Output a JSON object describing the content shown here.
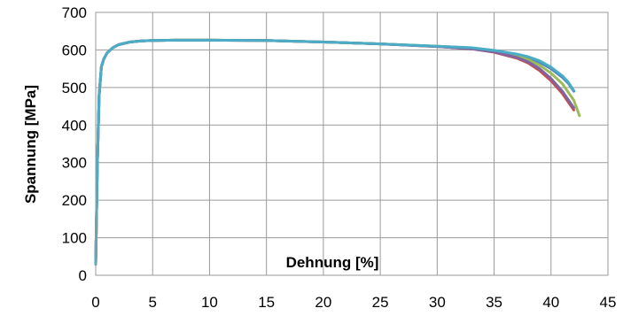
{
  "chart_data": {
    "type": "line",
    "title": "",
    "xlabel": "Dehnung [%]",
    "ylabel": "Spannung [MPa]",
    "xlim": [
      0,
      45
    ],
    "ylim": [
      0,
      700
    ],
    "x_ticks": [
      0,
      5,
      10,
      15,
      20,
      25,
      30,
      35,
      40,
      45
    ],
    "y_ticks": [
      0,
      100,
      200,
      300,
      400,
      500,
      600,
      700
    ],
    "x_tick_labels": [
      "0",
      "5",
      "10",
      "15",
      "20",
      "25",
      "30",
      "35",
      "40",
      "45"
    ],
    "y_tick_labels": [
      "0",
      "100",
      "200",
      "300",
      "400",
      "500",
      "600",
      "700"
    ],
    "grid": true,
    "legend": "none",
    "series": [
      {
        "color": "#4f81bd",
        "x": [
          0,
          0.15,
          0.3,
          0.5,
          0.7,
          1.0,
          1.5,
          2,
          3,
          4,
          5,
          7,
          10,
          15,
          20,
          25,
          30,
          33,
          35,
          37,
          38,
          39,
          40,
          41,
          41.5,
          42.0
        ],
        "y": [
          30,
          300,
          480,
          555,
          575,
          592,
          606,
          614,
          621,
          624,
          625,
          626,
          626,
          625,
          621,
          616,
          610,
          605,
          598,
          588,
          580,
          567,
          550,
          527,
          512,
          490
        ]
      },
      {
        "color": "#c0504d",
        "x": [
          0,
          0.15,
          0.3,
          0.5,
          0.7,
          1.0,
          1.5,
          2,
          3,
          4,
          5,
          7,
          10,
          15,
          20,
          25,
          30,
          33,
          35,
          37,
          38,
          39,
          40,
          41,
          41.5,
          42.0
        ],
        "y": [
          30,
          300,
          480,
          555,
          575,
          592,
          606,
          614,
          621,
          624,
          625,
          626,
          626,
          625,
          621,
          616,
          609,
          603,
          594,
          578,
          565,
          545,
          518,
          484,
          462,
          440
        ]
      },
      {
        "color": "#9bbb59",
        "x": [
          0,
          0.15,
          0.3,
          0.5,
          0.7,
          1.0,
          1.5,
          2,
          3,
          4,
          5,
          7,
          10,
          15,
          20,
          25,
          30,
          33,
          35,
          37,
          38,
          39,
          40,
          41,
          42,
          42.5
        ],
        "y": [
          30,
          300,
          480,
          555,
          575,
          592,
          606,
          614,
          621,
          624,
          625,
          626,
          626,
          625,
          621,
          616,
          610,
          605,
          597,
          584,
          574,
          559,
          538,
          510,
          466,
          425
        ]
      },
      {
        "color": "#8064a2",
        "x": [
          0,
          0.15,
          0.3,
          0.5,
          0.7,
          1.0,
          1.5,
          2,
          3,
          4,
          5,
          7,
          10,
          15,
          20,
          25,
          30,
          33,
          35,
          37,
          38,
          39,
          40,
          41,
          41.5,
          42.0
        ],
        "y": [
          30,
          300,
          480,
          555,
          575,
          592,
          606,
          614,
          621,
          624,
          625,
          626,
          626,
          625,
          621,
          616,
          609,
          603,
          595,
          580,
          568,
          550,
          524,
          490,
          468,
          446
        ]
      },
      {
        "color": "#4bacc6",
        "x": [
          0,
          0.15,
          0.3,
          0.5,
          0.7,
          1.0,
          1.5,
          2,
          3,
          4,
          5,
          7,
          10,
          15,
          20,
          25,
          30,
          33,
          35,
          37,
          38,
          39,
          40,
          41,
          41.5,
          42.0
        ],
        "y": [
          30,
          300,
          480,
          555,
          575,
          592,
          606,
          614,
          621,
          624,
          625,
          626,
          626,
          625,
          621,
          616,
          610,
          606,
          599,
          589,
          582,
          571,
          554,
          531,
          515,
          492
        ]
      }
    ]
  }
}
